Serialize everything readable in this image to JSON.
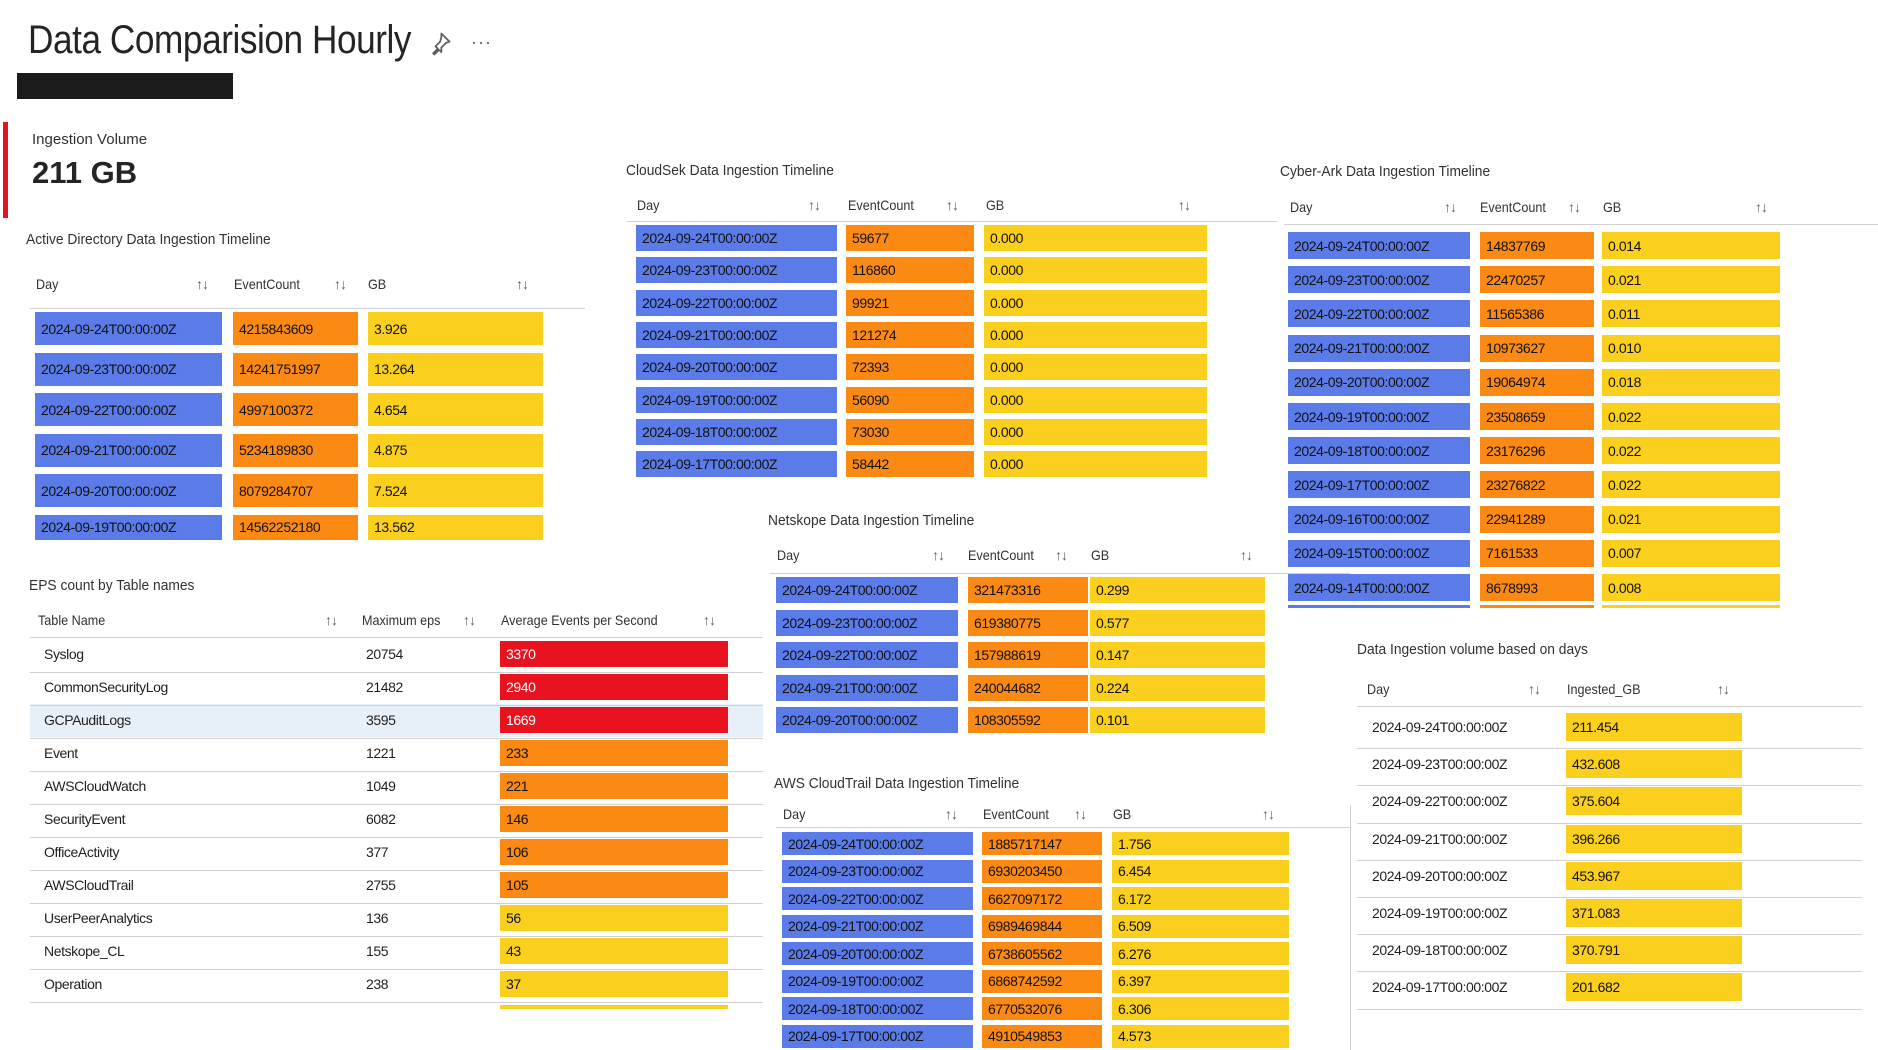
{
  "header": {
    "title": "Data Comparision Hourly",
    "pin_icon": "pin-icon",
    "more_icon": "more-icon",
    "more_label": "···"
  },
  "kpi": {
    "label": "Ingestion Volume",
    "value": "211 GB",
    "accent": "#e81123"
  },
  "active_directory": {
    "title": "Active Directory Data Ingestion Timeline",
    "columns": [
      "Day",
      "EventCount",
      "GB"
    ],
    "rows": [
      [
        "2024-09-24T00:00:00Z",
        "4215843609",
        "3.926"
      ],
      [
        "2024-09-23T00:00:00Z",
        "14241751997",
        "13.264"
      ],
      [
        "2024-09-22T00:00:00Z",
        "4997100372",
        "4.654"
      ],
      [
        "2024-09-21T00:00:00Z",
        "5234189830",
        "4.875"
      ],
      [
        "2024-09-20T00:00:00Z",
        "8079284707",
        "7.524"
      ],
      [
        "2024-09-19T00:00:00Z",
        "14562252180",
        "13.562"
      ]
    ]
  },
  "cloudsek": {
    "title": "CloudSek Data Ingestion Timeline",
    "columns": [
      "Day",
      "EventCount",
      "GB"
    ],
    "rows": [
      [
        "2024-09-24T00:00:00Z",
        "59677",
        "0.000"
      ],
      [
        "2024-09-23T00:00:00Z",
        "116860",
        "0.000"
      ],
      [
        "2024-09-22T00:00:00Z",
        "99921",
        "0.000"
      ],
      [
        "2024-09-21T00:00:00Z",
        "121274",
        "0.000"
      ],
      [
        "2024-09-20T00:00:00Z",
        "72393",
        "0.000"
      ],
      [
        "2024-09-19T00:00:00Z",
        "56090",
        "0.000"
      ],
      [
        "2024-09-18T00:00:00Z",
        "73030",
        "0.000"
      ],
      [
        "2024-09-17T00:00:00Z",
        "58442",
        "0.000"
      ]
    ]
  },
  "cyberark": {
    "title": "Cyber-Ark Data Ingestion Timeline",
    "columns": [
      "Day",
      "EventCount",
      "GB"
    ],
    "rows": [
      [
        "2024-09-24T00:00:00Z",
        "14837769",
        "0.014"
      ],
      [
        "2024-09-23T00:00:00Z",
        "22470257",
        "0.021"
      ],
      [
        "2024-09-22T00:00:00Z",
        "11565386",
        "0.011"
      ],
      [
        "2024-09-21T00:00:00Z",
        "10973627",
        "0.010"
      ],
      [
        "2024-09-20T00:00:00Z",
        "19064974",
        "0.018"
      ],
      [
        "2024-09-19T00:00:00Z",
        "23508659",
        "0.022"
      ],
      [
        "2024-09-18T00:00:00Z",
        "23176296",
        "0.022"
      ],
      [
        "2024-09-17T00:00:00Z",
        "23276822",
        "0.022"
      ],
      [
        "2024-09-16T00:00:00Z",
        "22941289",
        "0.021"
      ],
      [
        "2024-09-15T00:00:00Z",
        "7161533",
        "0.007"
      ],
      [
        "2024-09-14T00:00:00Z",
        "8678993",
        "0.008"
      ]
    ]
  },
  "eps": {
    "title": "EPS count by Table names",
    "columns": [
      "Table Name",
      "Maximum eps",
      "Average Events per Second"
    ],
    "rows": [
      [
        "Syslog",
        "20754",
        "3370",
        "red"
      ],
      [
        "CommonSecurityLog",
        "21482",
        "2940",
        "red"
      ],
      [
        "GCPAuditLogs",
        "3595",
        "1669",
        "red"
      ],
      [
        "Event",
        "1221",
        "233",
        "orange"
      ],
      [
        "AWSCloudWatch",
        "1049",
        "221",
        "orange"
      ],
      [
        "SecurityEvent",
        "6082",
        "146",
        "orange"
      ],
      [
        "OfficeActivity",
        "377",
        "106",
        "orange"
      ],
      [
        "AWSCloudTrail",
        "2755",
        "105",
        "orange"
      ],
      [
        "UserPeerAnalytics",
        "136",
        "56",
        "yellow"
      ],
      [
        "Netskope_CL",
        "155",
        "43",
        "yellow"
      ],
      [
        "Operation",
        "238",
        "37",
        "yellow"
      ]
    ]
  },
  "netskope": {
    "title": "Netskope Data Ingestion Timeline",
    "columns": [
      "Day",
      "EventCount",
      "GB"
    ],
    "rows": [
      [
        "2024-09-24T00:00:00Z",
        "321473316",
        "0.299"
      ],
      [
        "2024-09-23T00:00:00Z",
        "619380775",
        "0.577"
      ],
      [
        "2024-09-22T00:00:00Z",
        "157988619",
        "0.147"
      ],
      [
        "2024-09-21T00:00:00Z",
        "240044682",
        "0.224"
      ],
      [
        "2024-09-20T00:00:00Z",
        "108305592",
        "0.101"
      ]
    ]
  },
  "aws": {
    "title": "AWS CloudTrail Data Ingestion Timeline",
    "columns": [
      "Day",
      "EventCount",
      "GB"
    ],
    "rows": [
      [
        "2024-09-24T00:00:00Z",
        "1885717147",
        "1.756"
      ],
      [
        "2024-09-23T00:00:00Z",
        "6930203450",
        "6.454"
      ],
      [
        "2024-09-22T00:00:00Z",
        "6627097172",
        "6.172"
      ],
      [
        "2024-09-21T00:00:00Z",
        "6989469844",
        "6.509"
      ],
      [
        "2024-09-20T00:00:00Z",
        "6738605562",
        "6.276"
      ],
      [
        "2024-09-19T00:00:00Z",
        "6868742592",
        "6.397"
      ],
      [
        "2024-09-18T00:00:00Z",
        "6770532076",
        "6.306"
      ],
      [
        "2024-09-17T00:00:00Z",
        "4910549853",
        "4.573"
      ]
    ]
  },
  "volume": {
    "title": "Data Ingestion volume based on days",
    "columns": [
      "Day",
      "Ingested_GB"
    ],
    "rows": [
      [
        "2024-09-24T00:00:00Z",
        "211.454"
      ],
      [
        "2024-09-23T00:00:00Z",
        "432.608"
      ],
      [
        "2024-09-22T00:00:00Z",
        "375.604"
      ],
      [
        "2024-09-21T00:00:00Z",
        "396.266"
      ],
      [
        "2024-09-20T00:00:00Z",
        "453.967"
      ],
      [
        "2024-09-19T00:00:00Z",
        "371.083"
      ],
      [
        "2024-09-18T00:00:00Z",
        "370.791"
      ],
      [
        "2024-09-17T00:00:00Z",
        "201.682"
      ]
    ]
  },
  "sort_icon_glyph": "↑↓",
  "colors": {
    "day_bar": "#5b7ce8",
    "count_bar": "#fb8a14",
    "gb_bar": "#fbcf1d",
    "high_eps": "#e8131f"
  }
}
